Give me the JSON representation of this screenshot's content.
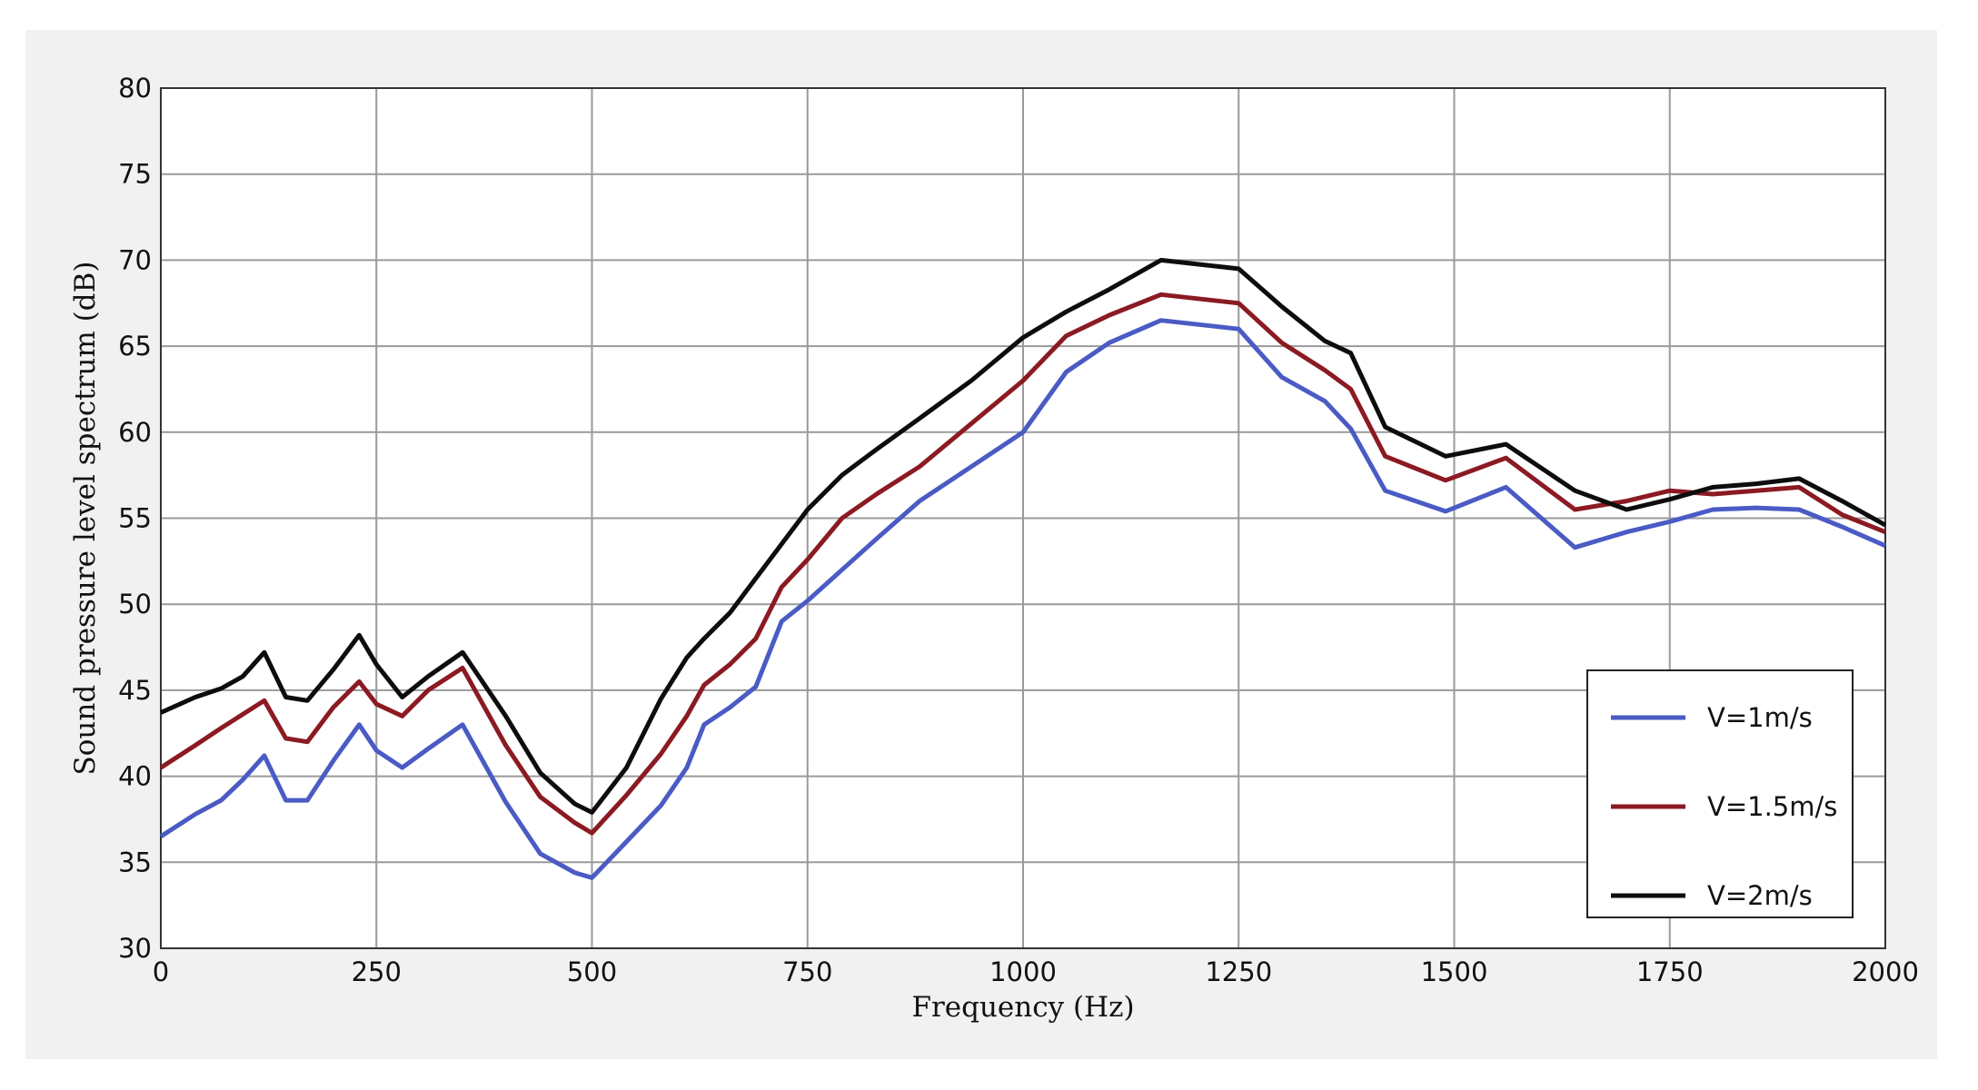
{
  "chart_data": {
    "type": "line",
    "title": "",
    "xlabel": "Frequency (Hz)",
    "ylabel": "Sound pressure level spectrum (dB)",
    "xlim": [
      0,
      2000
    ],
    "ylim": [
      30,
      80
    ],
    "xticks": [
      0,
      250,
      500,
      750,
      1000,
      1250,
      1500,
      1750,
      2000
    ],
    "yticks": [
      30,
      35,
      40,
      45,
      50,
      55,
      60,
      65,
      70,
      75,
      80
    ],
    "grid": true,
    "legend_position": "bottom-right",
    "series": [
      {
        "name": "V=1m/s",
        "color": "#4a5bc4",
        "x": [
          0,
          40,
          70,
          95,
          120,
          145,
          170,
          200,
          230,
          250,
          280,
          310,
          350,
          400,
          440,
          480,
          500,
          540,
          580,
          610,
          630,
          660,
          690,
          720,
          750,
          790,
          830,
          880,
          940,
          1000,
          1050,
          1100,
          1160,
          1250,
          1300,
          1350,
          1380,
          1420,
          1490,
          1560,
          1640,
          1700,
          1750,
          1800,
          1850,
          1900,
          1950,
          2000
        ],
        "y": [
          36.5,
          37.8,
          38.6,
          39.8,
          41.2,
          38.6,
          38.6,
          40.9,
          43.0,
          41.5,
          40.5,
          41.6,
          43.0,
          38.5,
          35.5,
          34.4,
          34.1,
          36.2,
          38.3,
          40.5,
          43.0,
          44.0,
          45.2,
          49.0,
          50.2,
          52.0,
          53.8,
          56.0,
          58.0,
          60.0,
          63.5,
          65.2,
          66.5,
          66.0,
          63.2,
          61.8,
          60.2,
          56.6,
          55.4,
          56.8,
          53.3,
          54.2,
          54.8,
          55.5,
          55.6,
          55.5,
          54.5,
          53.4
        ]
      },
      {
        "name": "V=1.5m/s",
        "color": "#8b1a22",
        "x": [
          0,
          40,
          70,
          95,
          120,
          145,
          170,
          200,
          230,
          250,
          280,
          310,
          350,
          400,
          440,
          480,
          500,
          540,
          580,
          610,
          630,
          660,
          690,
          720,
          750,
          790,
          830,
          880,
          940,
          1000,
          1050,
          1100,
          1160,
          1250,
          1300,
          1350,
          1380,
          1420,
          1490,
          1560,
          1640,
          1700,
          1750,
          1800,
          1850,
          1900,
          1950,
          2000
        ],
        "y": [
          40.5,
          41.8,
          42.8,
          43.6,
          44.4,
          42.2,
          42.0,
          44.0,
          45.5,
          44.2,
          43.5,
          45.0,
          46.3,
          41.8,
          38.8,
          37.3,
          36.7,
          38.9,
          41.3,
          43.5,
          45.3,
          46.5,
          48.0,
          51.0,
          52.6,
          55.0,
          56.4,
          58.0,
          60.5,
          63.0,
          65.6,
          66.8,
          68.0,
          67.5,
          65.2,
          63.6,
          62.5,
          58.6,
          57.2,
          58.5,
          55.5,
          56.0,
          56.6,
          56.4,
          56.6,
          56.8,
          55.2,
          54.2
        ]
      },
      {
        "name": "V=2m/s",
        "color": "#0d0d0d",
        "x": [
          0,
          40,
          70,
          95,
          120,
          145,
          170,
          200,
          230,
          250,
          280,
          310,
          350,
          400,
          440,
          480,
          500,
          540,
          580,
          610,
          630,
          660,
          690,
          720,
          750,
          790,
          830,
          880,
          940,
          1000,
          1050,
          1100,
          1160,
          1250,
          1300,
          1350,
          1380,
          1420,
          1490,
          1560,
          1640,
          1700,
          1750,
          1800,
          1850,
          1900,
          1950,
          2000
        ],
        "y": [
          43.7,
          44.6,
          45.1,
          45.8,
          47.2,
          44.6,
          44.4,
          46.2,
          48.2,
          46.5,
          44.6,
          45.8,
          47.2,
          43.5,
          40.2,
          38.4,
          37.9,
          40.5,
          44.5,
          46.9,
          48.0,
          49.5,
          51.5,
          53.5,
          55.5,
          57.5,
          59.0,
          60.8,
          63.0,
          65.5,
          67.0,
          68.3,
          70.0,
          69.5,
          67.3,
          65.3,
          64.6,
          60.3,
          58.6,
          59.3,
          56.6,
          55.5,
          56.1,
          56.8,
          57.0,
          57.3,
          56.0,
          54.6
        ]
      }
    ]
  }
}
